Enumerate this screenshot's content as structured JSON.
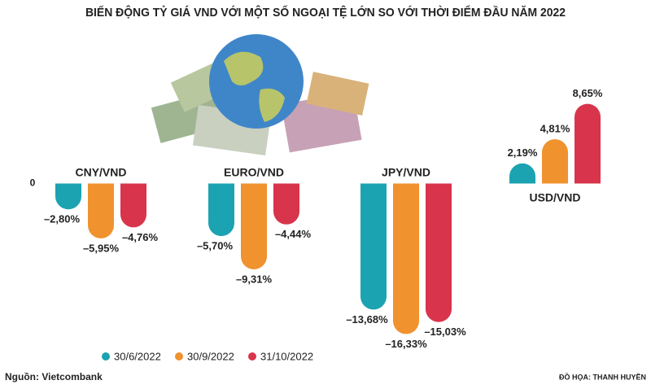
{
  "chart_data": {
    "type": "bar",
    "title": "BIẾN ĐỘNG TỶ GIÁ VND VỚI MỘT SỐ NGOẠI TỆ LỚN SO VỚI THỜI ĐIỂM ĐẦU NĂM 2022",
    "categories": [
      "CNY/VND",
      "EURO/VND",
      "JPY/VND",
      "USD/VND"
    ],
    "series": [
      {
        "name": "30/6/2022",
        "color": "#1ba3b1",
        "values": [
          -2.8,
          -5.7,
          -13.68,
          2.19
        ],
        "value_labels": [
          "–2,80%",
          "–5,70%",
          "–13,68%",
          "2,19%"
        ]
      },
      {
        "name": "30/9/2022",
        "color": "#f0922e",
        "values": [
          -5.95,
          -9.31,
          -16.33,
          4.81
        ],
        "value_labels": [
          "–5,95%",
          "–9,31%",
          "–16,33%",
          "4,81%"
        ]
      },
      {
        "name": "31/10/2022",
        "color": "#d8344b",
        "values": [
          -4.76,
          -4.44,
          -15.03,
          8.65
        ],
        "value_labels": [
          "–4,76%",
          "–4,44%",
          "–15,03%",
          "8,65%"
        ]
      }
    ],
    "ylim": [
      -17,
      9.5
    ],
    "yticks": [
      0
    ],
    "source": "Nguồn: Vietcombank",
    "credit": "ĐỒ HỌA: THANH HUYỀN"
  }
}
